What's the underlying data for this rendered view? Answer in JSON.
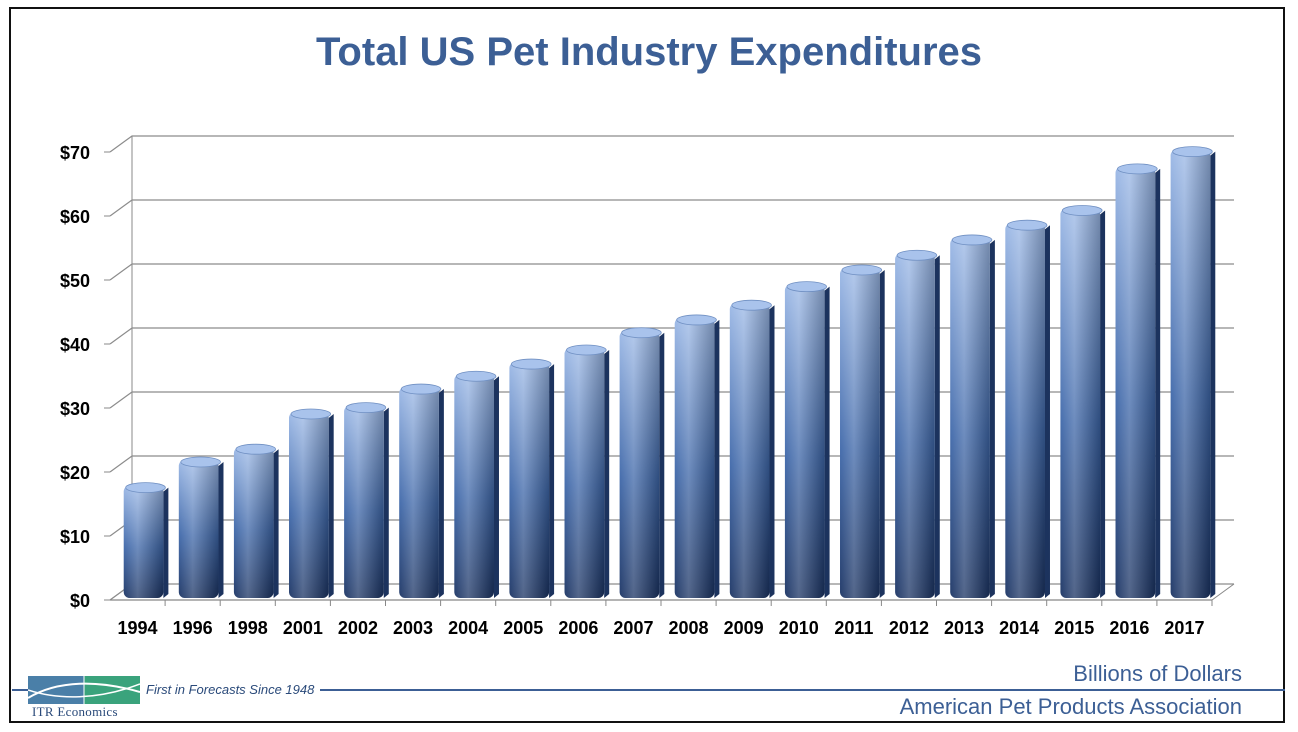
{
  "chart_data": {
    "type": "bar",
    "title": "Total US Pet Industry Expenditures",
    "categories": [
      "1994",
      "1996",
      "1998",
      "2001",
      "2002",
      "2003",
      "2004",
      "2005",
      "2006",
      "2007",
      "2008",
      "2009",
      "2010",
      "2011",
      "2012",
      "2013",
      "2014",
      "2015",
      "2016",
      "2017"
    ],
    "values": [
      17,
      21,
      23,
      28.5,
      29.5,
      32.4,
      34.4,
      36.3,
      38.5,
      41.2,
      43.2,
      45.5,
      48.4,
      51,
      53.3,
      55.7,
      58,
      60.3,
      66.8,
      69.5
    ],
    "y_ticks": [
      "$0",
      "$10",
      "$20",
      "$30",
      "$40",
      "$50",
      "$60",
      "$70"
    ],
    "ylim": [
      0,
      70
    ],
    "units_note": "Billions of Dollars",
    "grid": true,
    "bar_color_light": "#9bb8e6",
    "bar_color_dark": "#1a3363"
  },
  "footer": {
    "logo_text": "ITR Economics",
    "tagline": "First in Forecasts Since 1948",
    "source": "American Pet Products Association"
  },
  "colors": {
    "title": "#3c5f95",
    "accent": "#3c5f95"
  }
}
